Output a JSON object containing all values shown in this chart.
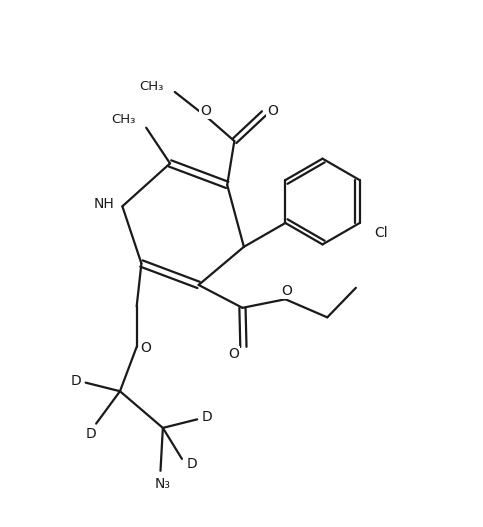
{
  "line_color": "#1a1a1a",
  "bg_color": "#ffffff",
  "lw": 1.6,
  "fontsize": 10,
  "figsize": [
    4.83,
    5.27
  ],
  "dpi": 100,
  "xlim": [
    -0.5,
    9.5
  ],
  "ylim": [
    -0.5,
    10.5
  ]
}
